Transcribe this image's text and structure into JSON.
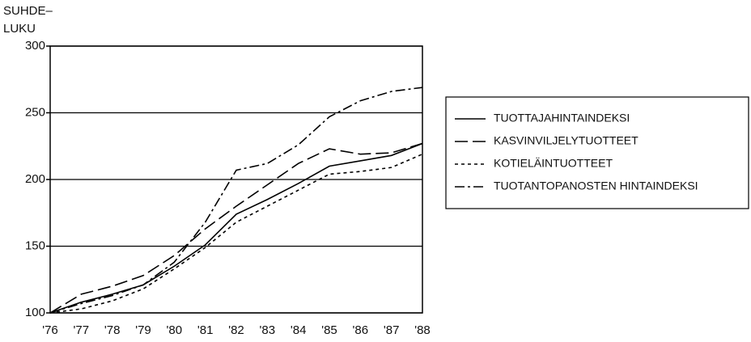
{
  "chart_data": {
    "type": "line",
    "y_label": [
      "SUHDE–",
      "LUKU"
    ],
    "categories": [
      "'76",
      "'77",
      "'78",
      "'79",
      "'80",
      "'81",
      "'82",
      "'83",
      "'84",
      "'85",
      "'86",
      "'87",
      "'88"
    ],
    "series": [
      {
        "name": "TUOTTAJAHINTAINDEKSI",
        "color": "#000000",
        "dash": "solid",
        "values": [
          100,
          108,
          114,
          121,
          135,
          151,
          174,
          185,
          197,
          210,
          214,
          218,
          227
        ]
      },
      {
        "name": "KASVINVILJELYTUOTTEET",
        "color": "#000000",
        "dash": "dashed",
        "values": [
          100,
          114,
          120,
          128,
          143,
          163,
          180,
          196,
          212,
          223,
          219,
          220,
          227
        ]
      },
      {
        "name": "KOTIELÄINTUOTTEET",
        "color": "#000000",
        "dash": "dotted",
        "values": [
          100,
          103,
          109,
          118,
          133,
          149,
          168,
          180,
          192,
          204,
          206,
          209,
          219
        ]
      },
      {
        "name": "TUOTANTOPANOSTEN HINTAINDEKSI",
        "color": "#000000",
        "dash": "dashdot",
        "values": [
          100,
          107,
          113,
          121,
          138,
          168,
          207,
          212,
          226,
          247,
          259,
          266,
          269
        ]
      }
    ],
    "ylim": [
      100,
      300
    ],
    "yticks": [
      100,
      150,
      200,
      250,
      300
    ],
    "grid": true,
    "legend": "right"
  }
}
